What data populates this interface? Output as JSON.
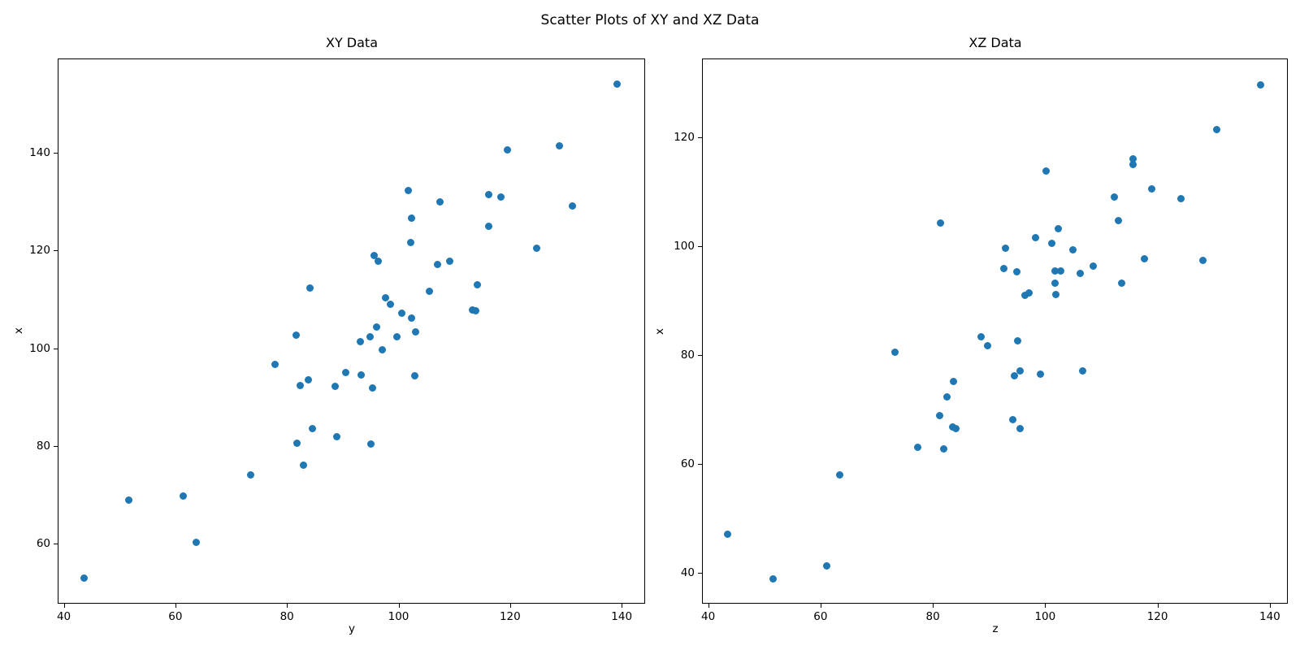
{
  "figure": {
    "suptitle": "Scatter Plots of XY and XZ Data",
    "background": "#ffffff",
    "marker_color": "#1f77b4",
    "text_color": "#000000"
  },
  "chart_data": [
    {
      "type": "scatter",
      "title": "XY Data",
      "xlabel": "y",
      "ylabel": "x",
      "xlim": [
        38.9,
        144.2
      ],
      "ylim": [
        47.7,
        159.3
      ],
      "xticks": [
        40,
        60,
        80,
        100,
        120,
        140
      ],
      "yticks": [
        60,
        80,
        100,
        120,
        140
      ],
      "grid": false,
      "legend": null,
      "points": [
        [
          43.6,
          52.9
        ],
        [
          51.7,
          68.9
        ],
        [
          61.4,
          69.8
        ],
        [
          63.8,
          60.3
        ],
        [
          73.5,
          74.0
        ],
        [
          77.8,
          96.6
        ],
        [
          81.6,
          102.6
        ],
        [
          81.8,
          80.6
        ],
        [
          82.4,
          92.3
        ],
        [
          82.9,
          76.0
        ],
        [
          83.8,
          93.6
        ],
        [
          84.1,
          112.3
        ],
        [
          84.5,
          83.6
        ],
        [
          88.7,
          92.2
        ],
        [
          89.0,
          81.9
        ],
        [
          90.5,
          95.0
        ],
        [
          93.1,
          101.4
        ],
        [
          93.3,
          94.5
        ],
        [
          94.9,
          102.3
        ],
        [
          95.0,
          80.4
        ],
        [
          95.4,
          91.9
        ],
        [
          95.7,
          118.9
        ],
        [
          96.0,
          104.3
        ],
        [
          96.3,
          117.8
        ],
        [
          97.1,
          99.6
        ],
        [
          97.7,
          110.4
        ],
        [
          98.6,
          109.0
        ],
        [
          99.7,
          102.3
        ],
        [
          100.6,
          107.1
        ],
        [
          101.7,
          132.2
        ],
        [
          102.2,
          121.6
        ],
        [
          102.3,
          126.7
        ],
        [
          102.4,
          106.2
        ],
        [
          102.9,
          94.3
        ],
        [
          103.1,
          103.3
        ],
        [
          105.6,
          111.7
        ],
        [
          107.0,
          117.1
        ],
        [
          107.4,
          130.0
        ],
        [
          109.1,
          117.8
        ],
        [
          113.3,
          107.9
        ],
        [
          113.8,
          107.6
        ],
        [
          114.1,
          112.9
        ],
        [
          116.1,
          131.5
        ],
        [
          116.2,
          125.0
        ],
        [
          118.4,
          131.0
        ],
        [
          119.5,
          140.6
        ],
        [
          124.8,
          120.4
        ],
        [
          128.8,
          141.4
        ],
        [
          131.1,
          129.1
        ],
        [
          139.2,
          154.0
        ]
      ]
    },
    {
      "type": "scatter",
      "title": "XZ Data",
      "xlabel": "z",
      "ylabel": "x",
      "xlim": [
        38.9,
        143.2
      ],
      "ylim": [
        34.4,
        134.5
      ],
      "xticks": [
        40,
        60,
        80,
        100,
        120,
        140
      ],
      "yticks": [
        40,
        60,
        80,
        100,
        120
      ],
      "grid": false,
      "legend": null,
      "points": [
        [
          43.5,
          47.1
        ],
        [
          51.6,
          39.0
        ],
        [
          61.1,
          41.4
        ],
        [
          63.4,
          58.1
        ],
        [
          73.2,
          80.6
        ],
        [
          77.3,
          63.1
        ],
        [
          81.2,
          69.0
        ],
        [
          81.3,
          104.3
        ],
        [
          81.9,
          62.8
        ],
        [
          82.5,
          72.3
        ],
        [
          83.5,
          66.9
        ],
        [
          83.7,
          75.2
        ],
        [
          84.1,
          66.6
        ],
        [
          88.6,
          83.4
        ],
        [
          89.7,
          81.8
        ],
        [
          92.7,
          95.9
        ],
        [
          92.9,
          99.7
        ],
        [
          94.3,
          68.2
        ],
        [
          94.5,
          76.2
        ],
        [
          95.0,
          95.3
        ],
        [
          95.1,
          82.6
        ],
        [
          95.5,
          66.6
        ],
        [
          95.5,
          77.1
        ],
        [
          96.4,
          91.0
        ],
        [
          97.1,
          91.4
        ],
        [
          98.3,
          101.6
        ],
        [
          99.1,
          76.5
        ],
        [
          100.1,
          113.9
        ],
        [
          101.2,
          100.6
        ],
        [
          101.7,
          93.2
        ],
        [
          101.8,
          95.5
        ],
        [
          101.9,
          91.1
        ],
        [
          102.4,
          103.2
        ],
        [
          102.7,
          95.5
        ],
        [
          105.0,
          99.4
        ],
        [
          106.2,
          95.0
        ],
        [
          106.7,
          77.1
        ],
        [
          108.5,
          96.4
        ],
        [
          112.3,
          109.0
        ],
        [
          113.1,
          104.7
        ],
        [
          113.6,
          93.3
        ],
        [
          115.6,
          115.0
        ],
        [
          115.6,
          116.1
        ],
        [
          117.7,
          97.8
        ],
        [
          118.9,
          110.6
        ],
        [
          124.2,
          108.7
        ],
        [
          128.1,
          97.5
        ],
        [
          130.5,
          121.4
        ],
        [
          138.3,
          129.7
        ]
      ]
    }
  ]
}
